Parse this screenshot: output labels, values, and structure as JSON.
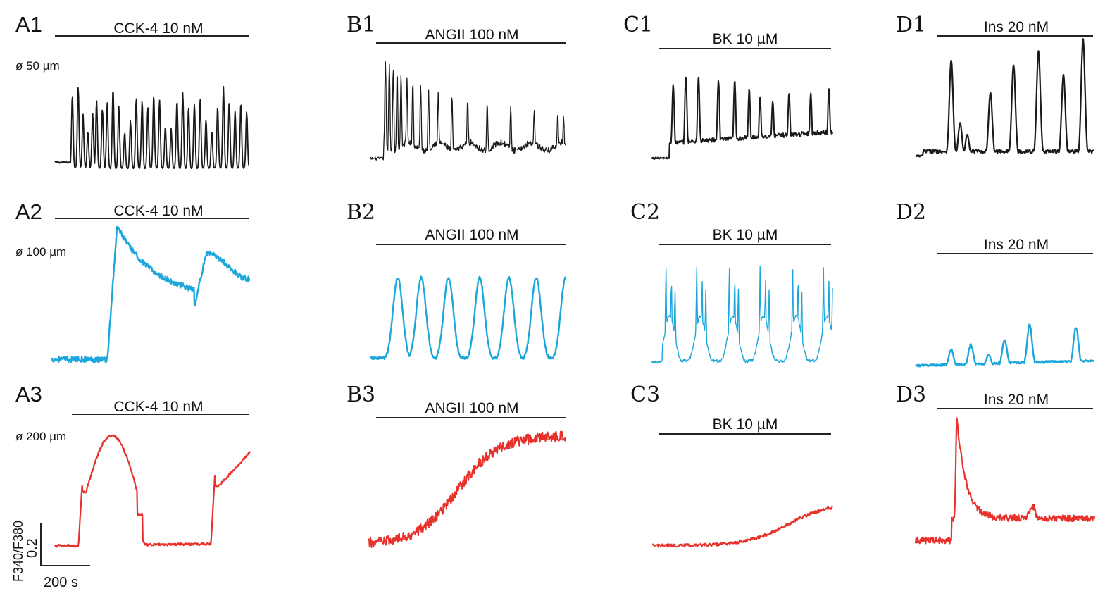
{
  "chart_data": {
    "type": "line",
    "colors": {
      "row1": "#1a1a1a",
      "row2": "#1ca7dc",
      "row3": "#e8312b"
    },
    "row_labels": [
      "ø 50 µm",
      "ø 100 µm",
      "ø 200 µm"
    ],
    "scale_bar": {
      "y_label": "F340/F380",
      "y_value": "0.2",
      "x_value": "200 s"
    },
    "panels": [
      {
        "id": "A1",
        "label": "A1",
        "stimulus": "CCK-4 10 nM",
        "pattern": "fast_oscillation"
      },
      {
        "id": "B1",
        "label": "B1",
        "stimulus": "ANGII 100 nM",
        "pattern": "fast_oscillation_decay"
      },
      {
        "id": "C1",
        "label": "C1",
        "stimulus": "BK 10 µM",
        "pattern": "spikes_moderate"
      },
      {
        "id": "D1",
        "label": "D1",
        "stimulus": "Ins 20 nM",
        "pattern": "slow_spikes"
      },
      {
        "id": "A2",
        "label": "A2",
        "stimulus": "CCK-4 10 nM",
        "pattern": "plateau_two_phase"
      },
      {
        "id": "B2",
        "label": "B2",
        "stimulus": "ANGII 100 nM",
        "pattern": "broad_oscillation"
      },
      {
        "id": "C2",
        "label": "C2",
        "stimulus": "BK 10 µM",
        "pattern": "burst_oscillation"
      },
      {
        "id": "D2",
        "label": "D2",
        "stimulus": "Ins 20 nM",
        "pattern": "small_spikes"
      },
      {
        "id": "A3",
        "label": "A3",
        "stimulus": "CCK-4 10 nM",
        "pattern": "big_plateau_then_rise"
      },
      {
        "id": "B3",
        "label": "B3",
        "stimulus": "ANGII 100 nM",
        "pattern": "sigmoid_rise"
      },
      {
        "id": "C3",
        "label": "C3",
        "stimulus": "BK 10 µM",
        "pattern": "slow_rise"
      },
      {
        "id": "D3",
        "label": "D3",
        "stimulus": "Ins 20 nM",
        "pattern": "single_transient"
      }
    ]
  }
}
